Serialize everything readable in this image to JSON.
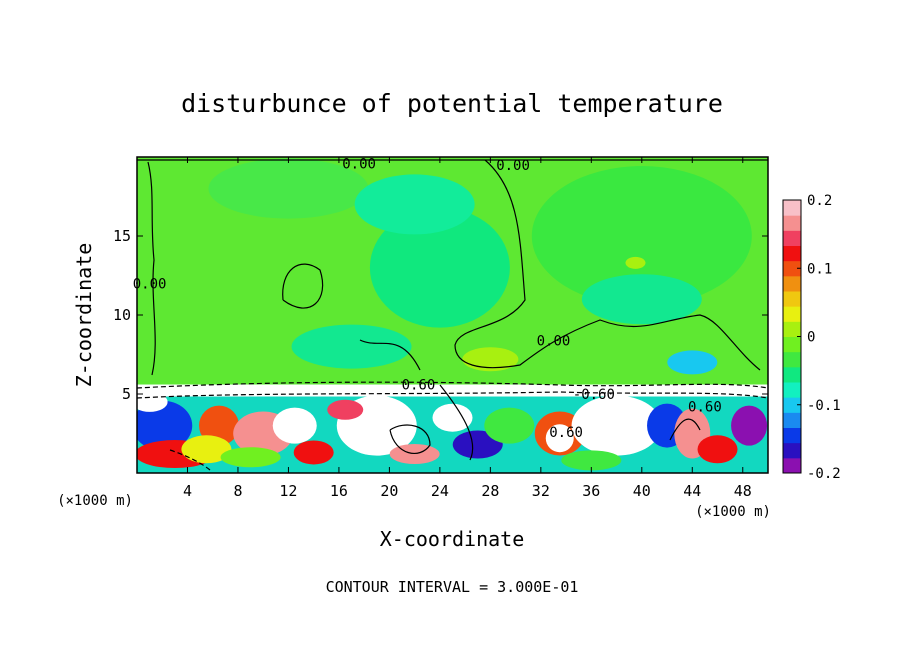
{
  "chart_data": {
    "type": "heatmap",
    "title": "disturbunce of potential temperature",
    "xlabel": "X-coordinate",
    "ylabel": "Z-coordinate",
    "x_unit": "(×1000 m)",
    "y_unit": "(×1000 m)",
    "xlim": [
      0,
      50
    ],
    "ylim": [
      0,
      20
    ],
    "x_ticks": [
      4,
      8,
      12,
      16,
      20,
      24,
      28,
      32,
      36,
      40,
      44,
      48
    ],
    "y_ticks": [
      5,
      10,
      15
    ],
    "contour_interval_text": "CONTOUR INTERVAL = 3.000E-01",
    "colorbar": {
      "range": [
        -0.2,
        0.2
      ],
      "tick_labels": [
        "0.2",
        "0.1",
        "0",
        "-0.1",
        "-0.2"
      ],
      "tick_values": [
        0.2,
        0.1,
        0,
        -0.1,
        -0.2
      ],
      "colors": [
        "#8b10b0",
        "#2a10c0",
        "#0a3ae8",
        "#1a8af0",
        "#18c8f0",
        "#12f0c0",
        "#10e880",
        "#40e840",
        "#70f020",
        "#a8f010",
        "#e8f010",
        "#f0c810",
        "#f09010",
        "#f05010",
        "#f01010",
        "#f04060",
        "#f59090",
        "#f8c0c8"
      ]
    },
    "contour_labels": [
      {
        "text": "0.00",
        "x": 17.6,
        "z": 19.6
      },
      {
        "text": "0.00",
        "x": 29.8,
        "z": 19.5
      },
      {
        "text": "0.00",
        "x": 1.0,
        "z": 12.0
      },
      {
        "text": "0.00",
        "x": 33.0,
        "z": 8.4
      },
      {
        "text": "-0.60",
        "x": 36.2,
        "z": 5.0
      },
      {
        "text": "0.60",
        "x": 22.3,
        "z": 5.6
      },
      {
        "text": "0.60",
        "x": 34.0,
        "z": 2.6
      },
      {
        "text": "0.60",
        "x": 45.0,
        "z": 4.2
      }
    ]
  }
}
